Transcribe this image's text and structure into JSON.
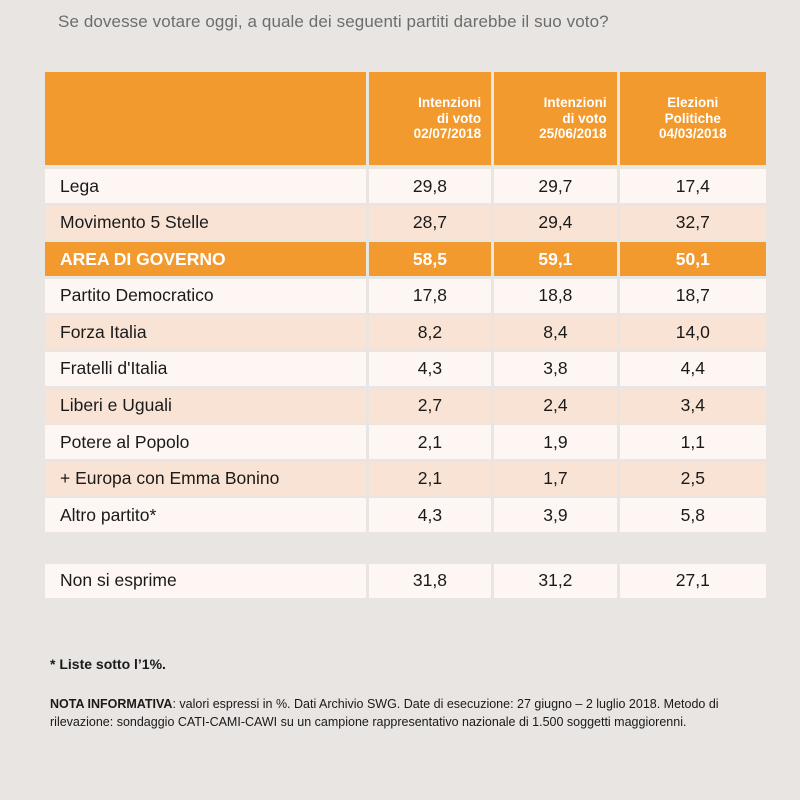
{
  "question": "Se dovesse votare oggi, a quale dei seguenti partiti darebbe il suo voto?",
  "colors": {
    "header_orange": "#f29a2e",
    "row_light": "#fdf6f2",
    "row_alt": "#f9e3d5",
    "background": "#e8e5e3"
  },
  "chart_data": {
    "type": "table",
    "columns": [
      {
        "lines": [
          "Intenzioni",
          "di voto",
          "02/07/2018"
        ]
      },
      {
        "lines": [
          "Intenzioni",
          "di voto",
          "25/06/2018"
        ]
      },
      {
        "lines": [
          "Elezioni",
          "Politiche",
          "04/03/2018"
        ]
      }
    ],
    "rows": [
      {
        "label": "Lega",
        "values": [
          "29,8",
          "29,7",
          "17,4"
        ]
      },
      {
        "label": "Movimento 5 Stelle",
        "values": [
          "28,7",
          "29,4",
          "32,7"
        ]
      },
      {
        "label": "AREA DI GOVERNO",
        "values": [
          "58,5",
          "59,1",
          "50,1"
        ],
        "highlight": true
      },
      {
        "label": "Partito Democratico",
        "values": [
          "17,8",
          "18,8",
          "18,7"
        ]
      },
      {
        "label": "Forza Italia",
        "values": [
          "8,2",
          "8,4",
          "14,0"
        ]
      },
      {
        "label": "Fratelli d'Italia",
        "values": [
          "4,3",
          "3,8",
          "4,4"
        ]
      },
      {
        "label": "Liberi e Uguali",
        "values": [
          "2,7",
          "2,4",
          "3,4"
        ]
      },
      {
        "label": "Potere al Popolo",
        "values": [
          "2,1",
          "1,9",
          "1,1"
        ]
      },
      {
        "label": "+ Europa con Emma Bonino",
        "values": [
          "2,1",
          "1,7",
          "2,5"
        ]
      },
      {
        "label": "Altro partito*",
        "values": [
          "4,3",
          "3,9",
          "5,8"
        ]
      }
    ],
    "footer_row": {
      "label": "Non si esprime",
      "values": [
        "31,8",
        "31,2",
        "27,1"
      ]
    }
  },
  "notes": {
    "asterisk": "* Liste sotto l’1%.",
    "info_label": "NOTA INFORMATIVA",
    "info_text": ": valori espressi in %. Dati Archivio SWG. Date di esecuzione: 27 giugno – 2 luglio 2018. Metodo di rilevazione: sondaggio CATI-CAMI-CAWI su un campione rappresentativo nazionale di 1.500 soggetti maggiorenni."
  }
}
